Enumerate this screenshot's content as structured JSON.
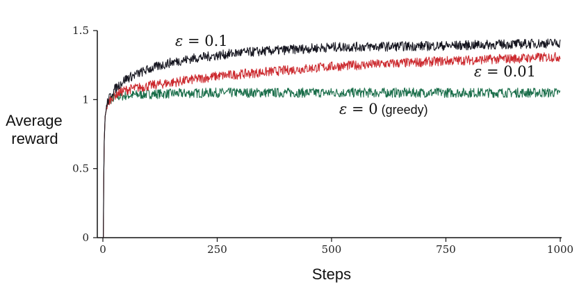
{
  "chart_data": {
    "type": "line",
    "title": "",
    "xlabel": "Steps",
    "ylabel": [
      "Average",
      "reward"
    ],
    "xlim": [
      0,
      1000
    ],
    "ylim": [
      0,
      1.5
    ],
    "xticks": [
      0,
      250,
      500,
      750,
      1000
    ],
    "xtick_labels": [
      "0",
      "250",
      "500",
      "750",
      "1000"
    ],
    "yticks": [
      0,
      0.5,
      1,
      1.5
    ],
    "ytick_labels": [
      "0",
      "0.5",
      "1",
      "1.5"
    ],
    "grid": false,
    "legend": "none (inline labels)",
    "series": [
      {
        "name": "ε = 0 (greedy)",
        "label_parts": {
          "eps": "ε",
          "eq": " = 0",
          "paren": " (greedy)"
        },
        "color": "#1a6e4a",
        "x": [
          1,
          2,
          3,
          5,
          10,
          20,
          30,
          50,
          100,
          250,
          500,
          750,
          1000
        ],
        "values": [
          0.0,
          0.45,
          0.7,
          0.88,
          0.97,
          1.01,
          1.02,
          1.03,
          1.04,
          1.05,
          1.05,
          1.05,
          1.05
        ]
      },
      {
        "name": "ε = 0.01",
        "label_parts": {
          "eps": "ε",
          "eq": " = 0.01",
          "paren": ""
        },
        "color": "#cc2a2f",
        "x": [
          1,
          2,
          3,
          5,
          10,
          20,
          30,
          50,
          100,
          250,
          500,
          750,
          1000
        ],
        "values": [
          0.0,
          0.45,
          0.7,
          0.88,
          0.97,
          1.02,
          1.04,
          1.07,
          1.1,
          1.17,
          1.24,
          1.28,
          1.31
        ]
      },
      {
        "name": "ε = 0.1",
        "label_parts": {
          "eps": "ε",
          "eq": " = 0.1",
          "paren": ""
        },
        "color": "#15151f",
        "x": [
          1,
          2,
          3,
          5,
          10,
          20,
          30,
          50,
          100,
          150,
          200,
          250,
          300,
          400,
          500,
          750,
          1000
        ],
        "values": [
          0.0,
          0.45,
          0.7,
          0.88,
          0.98,
          1.05,
          1.09,
          1.15,
          1.22,
          1.27,
          1.3,
          1.32,
          1.34,
          1.36,
          1.38,
          1.39,
          1.41
        ]
      }
    ]
  }
}
